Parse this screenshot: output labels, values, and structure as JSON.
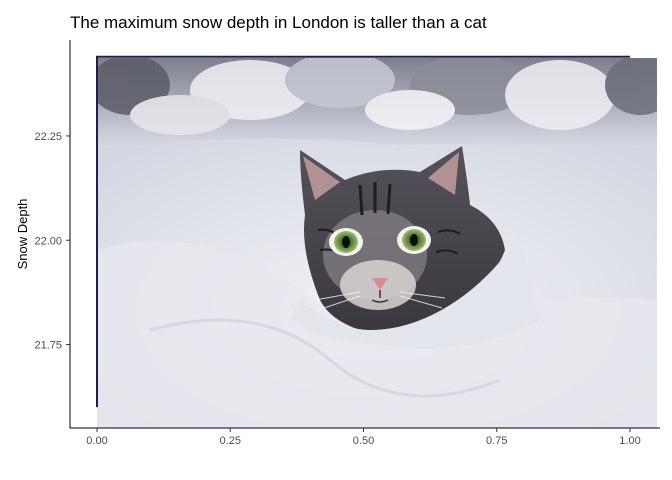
{
  "chart_data": {
    "type": "area",
    "title": "The maximum snow depth in London is taller than a cat",
    "xlabel": "",
    "ylabel": "Snow Depth",
    "xlim": [
      0,
      1
    ],
    "ylim": [
      21.55,
      22.48
    ],
    "x_ticks": [
      0.0,
      0.25,
      0.5,
      0.75,
      1.0
    ],
    "x_tick_labels": [
      "0.00",
      "0.25",
      "0.50",
      "0.75",
      "1.00"
    ],
    "y_ticks": [
      21.75,
      22.0,
      22.25
    ],
    "y_tick_labels": [
      "21.75",
      "22.00",
      "22.25"
    ],
    "series": [
      {
        "x": [
          0,
          1
        ],
        "y": [
          22.44,
          22.44
        ]
      }
    ],
    "baseline": 21.6,
    "grid": false,
    "legend": "none",
    "background_image": "cat-in-snow-photo",
    "line_color": "#1f1f4d"
  }
}
